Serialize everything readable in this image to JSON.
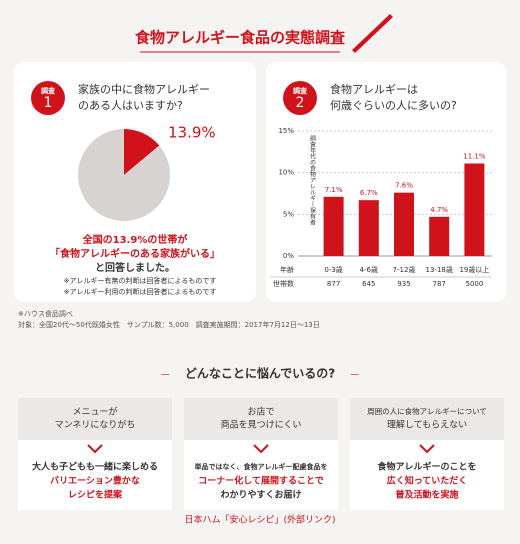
{
  "header": {
    "title": "食物アレルギー食品の実態調査"
  },
  "chart_data": [
    {
      "type": "pie",
      "badge": "調査",
      "badge_number": "1",
      "question": [
        "家族の中に食物アレルギー",
        "のある人はいますか?"
      ],
      "categories": [
        null,
        null
      ],
      "values": [
        13.9,
        86.1
      ],
      "value_labels": [
        "13.9%",
        null
      ],
      "colors": [
        "#d0121b",
        "#d6d3d0"
      ],
      "summary": [
        "全国の13.9%の世帯が",
        "「食物アレルギーのある家族がいる」",
        "と回答しました。"
      ],
      "notes": [
        "※アレルギー有無の判断は回答者によるものです",
        "※アレルギー利用の判断は回答者によるものです"
      ]
    },
    {
      "type": "bar",
      "badge": "調査",
      "badge_number": "2",
      "question": [
        "食物アレルギーは",
        "何歳ぐらいの人に多いの?"
      ],
      "y_label": "調査年代の食物アレルギー保有者",
      "color": "#d0121b",
      "categories": [
        "0-3歳",
        "4-6歳",
        "7-12歳",
        "13-18歳",
        "19歳以上"
      ],
      "values": [
        7.1,
        6.7,
        7.6,
        4.7,
        11.1
      ],
      "value_labels": [
        "7.1%",
        "6.7%",
        "7.6%",
        "4.7%",
        "11.1%"
      ],
      "ylim": [
        0,
        15
      ],
      "yticks": [
        {
          "value": 0,
          "label": "0%"
        },
        {
          "value": 5,
          "label": "5%"
        },
        {
          "value": 10,
          "label": "10%"
        },
        {
          "value": 15,
          "label": "15%"
        }
      ],
      "grid": true,
      "table": {
        "row_labels": [
          "年齢",
          "世帯数"
        ],
        "counts": [
          877,
          645,
          935,
          787,
          5000
        ]
      }
    }
  ],
  "source": [
    "※ハウス食品調べ",
    "対象：全国20代〜50代既婚女性　サンプル数：5,000　調査実施期間：2017年7月12日〜13日"
  ],
  "section": {
    "title": "どんなことに悩んでいるの?",
    "cards": [
      {
        "problem": [
          "メニューが",
          "マンネリになりがち"
        ],
        "solution": [
          {
            "text": "大人も子どもも一緒に楽しめる",
            "red": false
          },
          {
            "text": "バリエーション豊かな",
            "red": true
          },
          {
            "text": "レシピを提案",
            "red": true
          }
        ]
      },
      {
        "problem": [
          "お店で",
          "商品を見つけにくい"
        ],
        "solution": [
          {
            "text": "単品ではなく、食物アレルギー配慮食品を",
            "red": false
          },
          {
            "text": "コーナー化して展開することで",
            "red": true
          },
          {
            "text": "わかりやすくお届け",
            "red": false
          }
        ]
      },
      {
        "problem": [
          "周囲の人に食物アレルギーについて",
          "理解してもらえない"
        ],
        "solution": [
          {
            "text": "食物アレルギーのことを",
            "red": false
          },
          {
            "text": "広く知っていただく",
            "red": true
          },
          {
            "text": "普及活動を実施",
            "red": true
          }
        ]
      }
    ]
  },
  "link": "日本ハム「安心レシピ」(外部リンク)"
}
